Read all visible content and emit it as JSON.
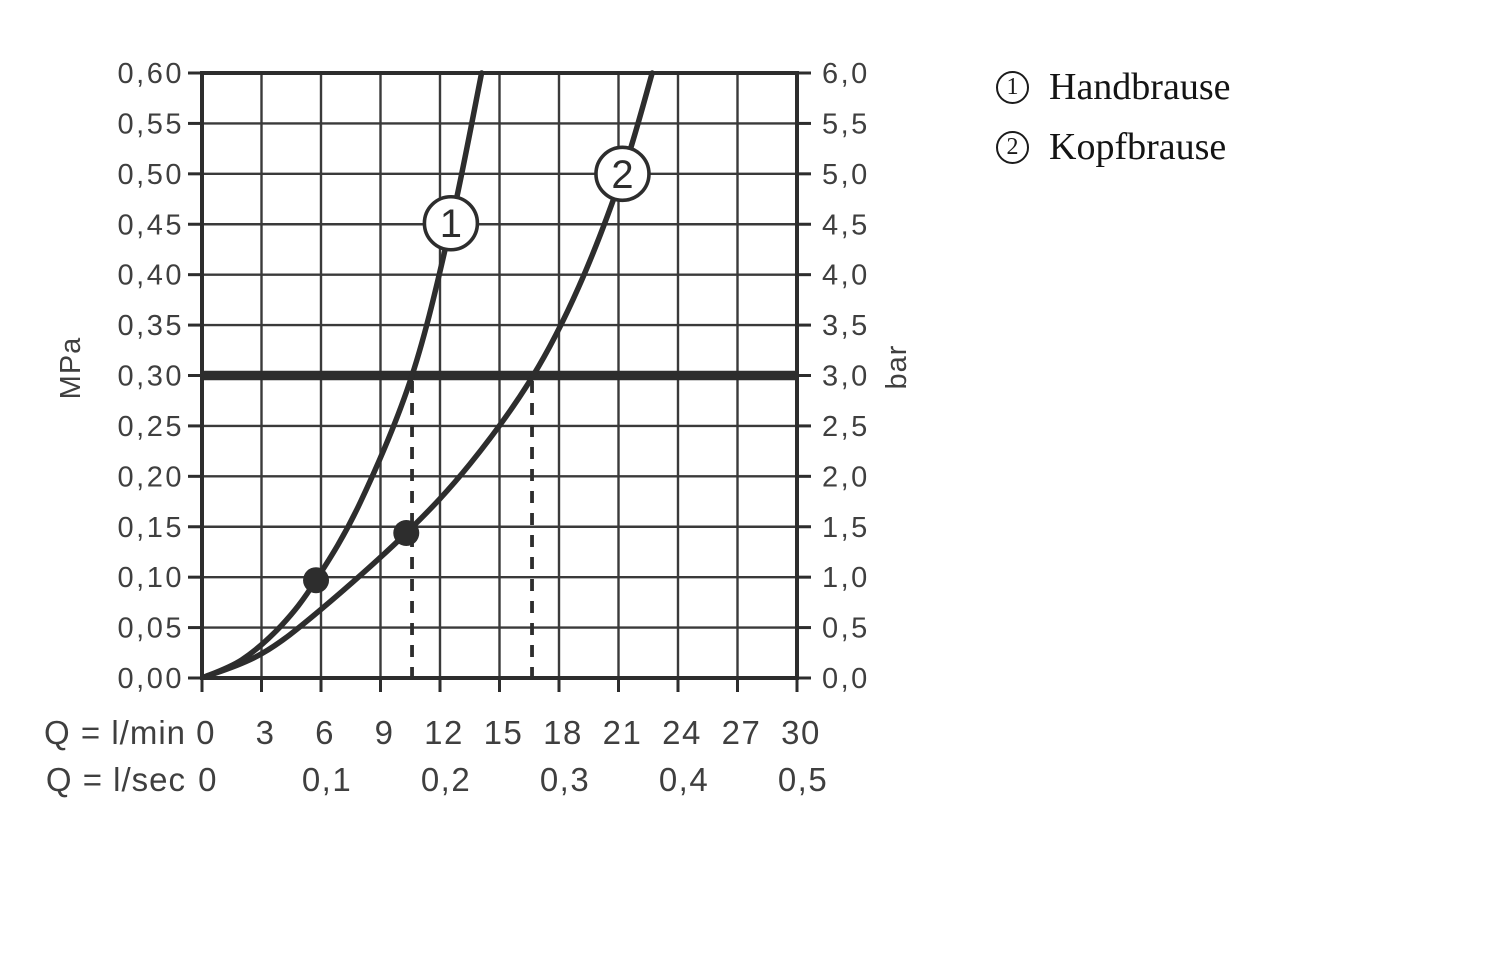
{
  "colors": {
    "background": "#ffffff",
    "stroke": "#2d2d2d",
    "grid": "#3a3a3a",
    "text": "#3f3f3f",
    "legend_text": "#141414"
  },
  "chart_data": {
    "type": "line",
    "title": "",
    "x_axis": {
      "label_lmin": "Q = l/min",
      "ticks_lmin": [
        "0",
        "3",
        "6",
        "9",
        "12",
        "15",
        "18",
        "21",
        "24",
        "27",
        "30"
      ],
      "label_lsec": "Q = l/sec",
      "ticks_lsec": [
        "0",
        "0,1",
        "0,2",
        "0,3",
        "0,4",
        "0,5"
      ],
      "range_lmin": [
        0,
        30
      ]
    },
    "y_axis_left": {
      "label": "MPa",
      "ticks": [
        "0,60",
        "0,55",
        "0,50",
        "0,45",
        "0,40",
        "0,35",
        "0,30",
        "0,25",
        "0,20",
        "0,15",
        "0,10",
        "0,05",
        "0,00"
      ],
      "range": [
        0,
        0.6
      ]
    },
    "y_axis_right": {
      "label": "bar",
      "ticks": [
        "6,0",
        "5,5",
        "5,0",
        "4,5",
        "4,0",
        "3,5",
        "3,0",
        "2,5",
        "2,0",
        "1,5",
        "1,0",
        "0,5",
        "0,0"
      ]
    },
    "reference_line": {
      "mpa": 0.3,
      "bar": 3.0
    },
    "dashed_drop_lines_lmin": [
      10.59,
      16.64
    ],
    "series": [
      {
        "name": "Handbrause",
        "marker": "1",
        "marker_at": [
          12.55,
          0.451
        ],
        "dot_at": [
          5.75,
          0.097
        ],
        "points_q_mpa": [
          [
            0,
            0
          ],
          [
            2,
            0.018
          ],
          [
            4,
            0.052
          ],
          [
            5.75,
            0.097
          ],
          [
            8,
            0.175
          ],
          [
            10.59,
            0.3
          ],
          [
            12.55,
            0.45
          ],
          [
            14.1,
            0.6
          ]
        ]
      },
      {
        "name": "Kopfbrause",
        "marker": "2",
        "marker_at": [
          21.2,
          0.5
        ],
        "dot_at": [
          10.3,
          0.1438
        ],
        "points_q_mpa": [
          [
            0,
            0
          ],
          [
            3,
            0.024
          ],
          [
            6,
            0.068
          ],
          [
            10.3,
            0.1438
          ],
          [
            13.5,
            0.212
          ],
          [
            16.64,
            0.298
          ],
          [
            19,
            0.388
          ],
          [
            21.2,
            0.5
          ],
          [
            22.7,
            0.6
          ]
        ]
      }
    ]
  },
  "legend": {
    "items": [
      {
        "number": "1",
        "label": "Handbrause"
      },
      {
        "number": "2",
        "label": "Kopfbrause"
      }
    ]
  }
}
